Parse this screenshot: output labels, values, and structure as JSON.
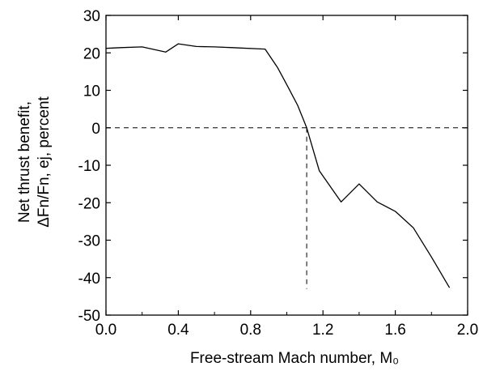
{
  "chart_data": {
    "type": "line",
    "xlabel": "Free-stream Mach number, M₀",
    "ylabel_line1": "Net thrust benefit,",
    "ylabel_line2": "ΔFn/Fn, ej, percent",
    "xlim": [
      0.0,
      2.0
    ],
    "ylim": [
      -50,
      30
    ],
    "x_ticks": [
      "0.0",
      "0.4",
      "0.8",
      "1.2",
      "1.6",
      "2.0"
    ],
    "y_ticks": [
      "30",
      "20",
      "10",
      "0",
      "-10",
      "-20",
      "-30",
      "-40",
      "-50"
    ],
    "grid": false,
    "series": [
      {
        "x": [
          0.0,
          0.08,
          0.2,
          0.33,
          0.4,
          0.5,
          0.6,
          0.7,
          0.88,
          0.95,
          1.0,
          1.06,
          1.11,
          1.18,
          1.3,
          1.4,
          1.5,
          1.6,
          1.7,
          1.8,
          1.9
        ],
        "values": [
          21.2,
          21.4,
          21.6,
          20.2,
          22.4,
          21.7,
          21.6,
          21.4,
          21.0,
          16.0,
          11.5,
          6.0,
          0.0,
          -11.5,
          -19.8,
          -15.0,
          -19.8,
          -22.3,
          -26.7,
          -34.5,
          -42.7
        ]
      }
    ],
    "reference_line_y": 0,
    "reference_line_x": 1.11
  }
}
